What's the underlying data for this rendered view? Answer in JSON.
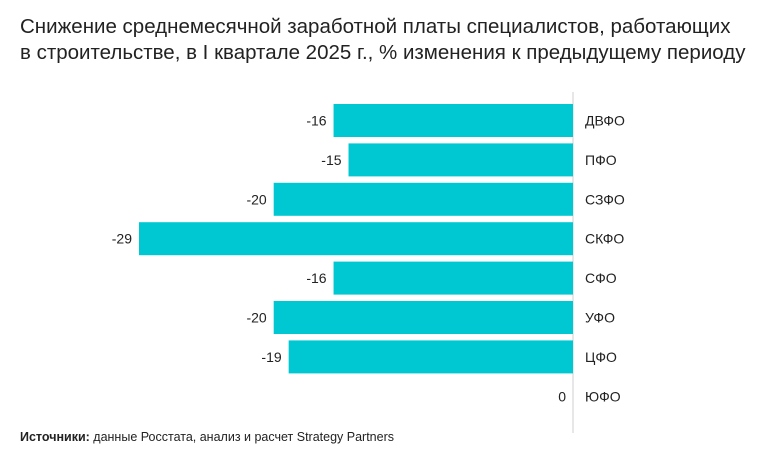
{
  "chart_data": {
    "type": "bar",
    "orientation": "horizontal",
    "title_line1": "Снижение среднемесячной заработной платы специалистов, работающих",
    "title_line2": "в строительстве, в I квартале 2025 г., % изменения к предыдущему периоду",
    "categories": [
      "ДВФО",
      "ПФО",
      "СЗФО",
      "СКФО",
      "СФО",
      "УФО",
      "ЦФО",
      "ЮФО"
    ],
    "values": [
      -16,
      -15,
      -20,
      -29,
      -16,
      -20,
      -19,
      0
    ],
    "xlim": [
      -29,
      0
    ],
    "bar_color": "#00c8d2",
    "axis_color": "#cfcfcf",
    "grid": false,
    "legend": "none"
  },
  "source": {
    "label": "Источники:",
    "text": " данные Росстата, анализ и расчет Strategy Partners"
  }
}
